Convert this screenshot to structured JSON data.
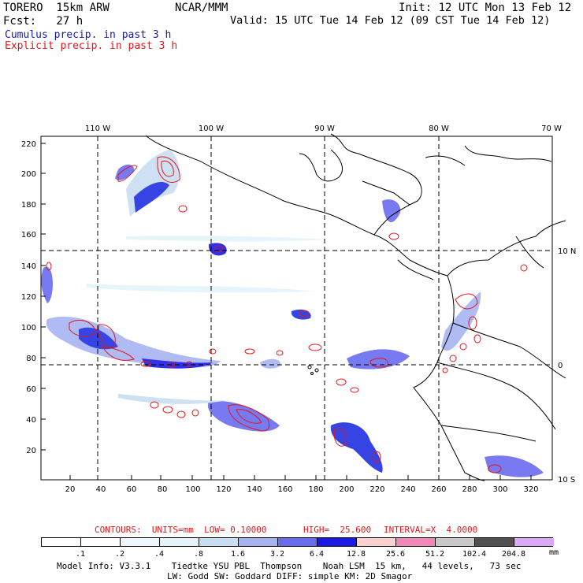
{
  "header": {
    "model": "TORERO  15km ARW",
    "org": "NCAR/MMM",
    "init": "Init: 12 UTC Mon 13 Feb 12",
    "fcst": "Fcst:   27 h",
    "valid": "Valid: 15 UTC Tue 14 Feb 12 (09 CST Tue 14 Feb 12)",
    "legend_cumulus": "Cumulus precip. in past 3 h",
    "legend_explicit": "Explicit precip. in past 3 h"
  },
  "map": {
    "top_lon_labels": [
      "110 W",
      "100 W",
      "90 W",
      "80 W",
      "70 W"
    ],
    "right_lat_labels": [
      "10 N",
      "0",
      "10 S"
    ],
    "y_ticks": [
      "220",
      "200",
      "180",
      "160",
      "140",
      "120",
      "100",
      "80",
      "60",
      "40",
      "20"
    ],
    "x_ticks": [
      "20",
      "40",
      "60",
      "80",
      "100",
      "120",
      "140",
      "160",
      "180",
      "200",
      "220",
      "240",
      "260",
      "280",
      "300",
      "320"
    ],
    "colors": {
      "cumulus": "#2030e0",
      "explicit": "#e01818",
      "coast": "#000000",
      "grid": "#000000"
    }
  },
  "contour_info": {
    "contours": "CONTOURS:  UNITS=mm  LOW= 0.10000",
    "high": "HIGH=  25.600",
    "interval": "INTERVAL=X  4.0000"
  },
  "colorbar": {
    "labels": [
      ".1",
      ".2",
      ".4",
      ".8",
      "1.6",
      "3.2",
      "6.4",
      "12.8",
      "25.6",
      "51.2",
      "102.4",
      "204.8"
    ],
    "unit": "mm",
    "colors": [
      "#ffffff",
      "#ffffff",
      "#f0f8ff",
      "#e4f4fa",
      "#c8def2",
      "#a8b4f2",
      "#6a6cf0",
      "#1a1ae8",
      "#ffd0d0",
      "#f288b8",
      "#c8c8c8",
      "#505050",
      "#d9a8f8"
    ]
  },
  "footer": {
    "line1": "Model Info: V3.3.1    Tiedtke YSU PBL  Thompson    Noah LSM  15 km,   44 levels,   73 sec",
    "line2": "LW: Godd SW: Goddard DIFF: simple KM: 2D Smagor"
  }
}
